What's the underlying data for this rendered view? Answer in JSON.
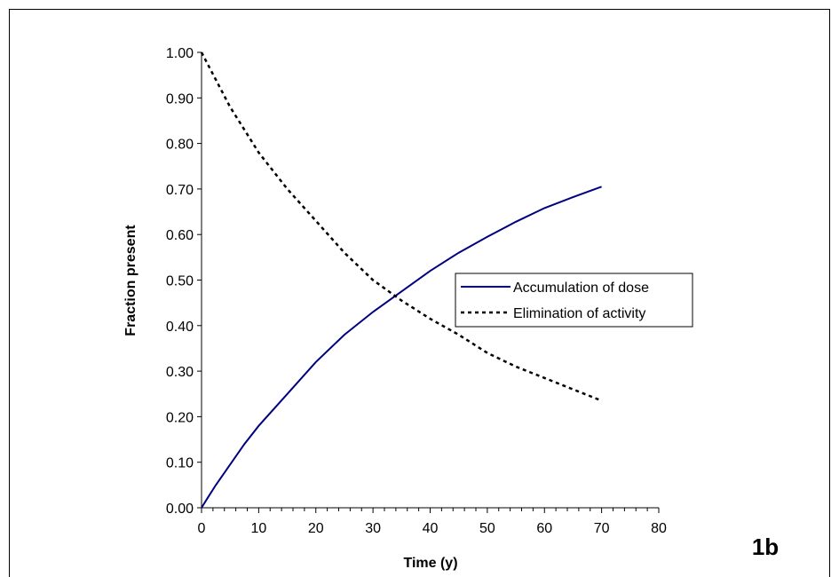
{
  "panel_label": "1b",
  "chart_data": {
    "type": "line",
    "xlabel": "Time (y)",
    "ylabel": "Fraction present",
    "xlim": [
      0,
      80
    ],
    "ylim": [
      0,
      1
    ],
    "x_ticks": [
      0,
      10,
      20,
      30,
      40,
      50,
      60,
      70,
      80
    ],
    "y_ticks": [
      0.0,
      0.1,
      0.2,
      0.3,
      0.4,
      0.5,
      0.6,
      0.7,
      0.8,
      0.9,
      1.0
    ],
    "x_tick_labels": [
      "0",
      "10",
      "20",
      "30",
      "40",
      "50",
      "60",
      "70",
      "80"
    ],
    "y_tick_labels": [
      "0.00",
      "0.10",
      "0.20",
      "0.30",
      "0.40",
      "0.50",
      "0.60",
      "0.70",
      "0.80",
      "0.90",
      "1.00"
    ],
    "grid": false,
    "legend_position": "right-center",
    "series": [
      {
        "name": "Accumulation of dose",
        "color": "#000080",
        "style": "solid",
        "x": [
          0,
          1,
          2.5,
          5,
          7.5,
          10,
          15,
          20,
          25,
          30,
          35,
          40,
          45,
          50,
          55,
          60,
          65,
          70
        ],
        "y": [
          0,
          0.02,
          0.05,
          0.095,
          0.14,
          0.18,
          0.25,
          0.32,
          0.38,
          0.43,
          0.475,
          0.52,
          0.56,
          0.595,
          0.628,
          0.658,
          0.682,
          0.705
        ]
      },
      {
        "name": "Elimination of activity",
        "color": "#000000",
        "style": "dotted",
        "x": [
          0,
          2.5,
          5,
          7.5,
          10,
          15,
          20,
          25,
          30,
          35,
          40,
          45,
          50,
          55,
          60,
          65,
          70
        ],
        "y": [
          1.0,
          0.94,
          0.88,
          0.83,
          0.78,
          0.7,
          0.63,
          0.56,
          0.5,
          0.455,
          0.415,
          0.38,
          0.34,
          0.31,
          0.285,
          0.26,
          0.235
        ]
      }
    ]
  }
}
